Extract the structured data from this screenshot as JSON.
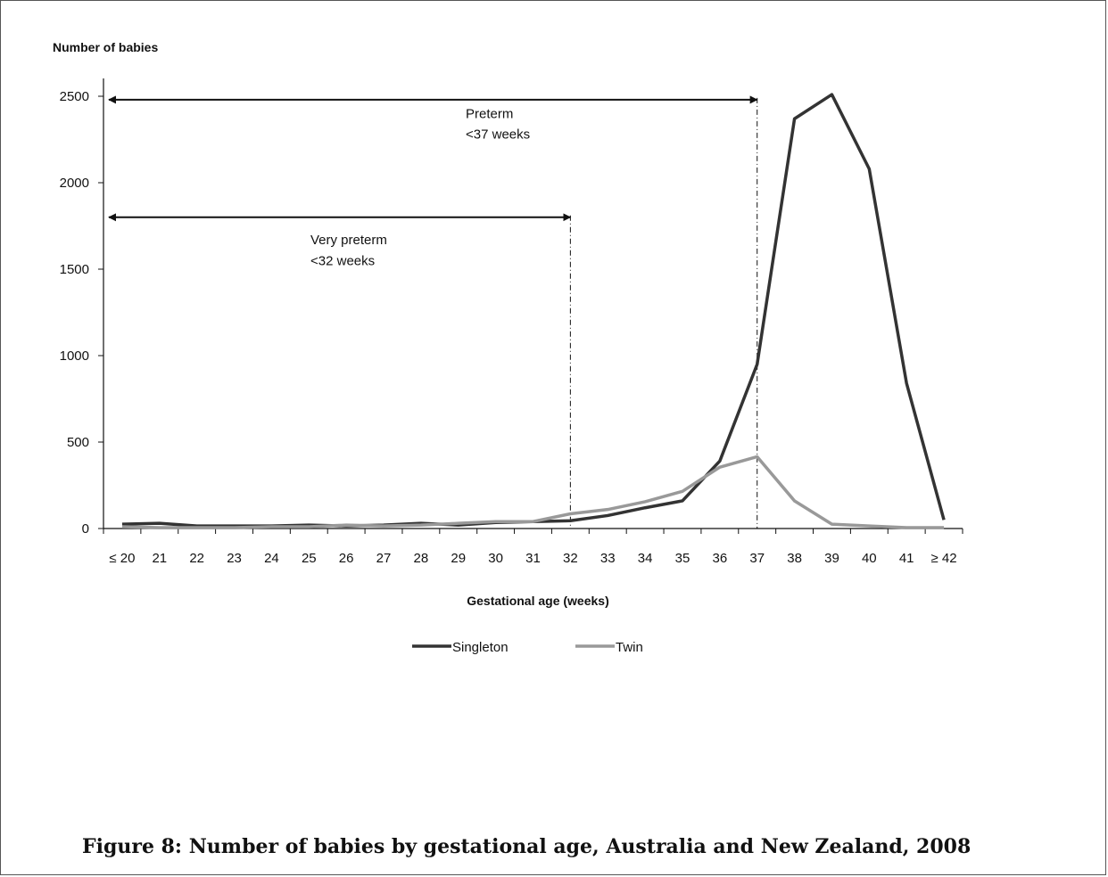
{
  "figure_caption": "Figure 8: Number of babies by gestational age, Australia and New Zealand, 2008",
  "chart_data": {
    "type": "line",
    "title": "",
    "ylabel": "Number of babies",
    "xlabel": "Gestational age (weeks)",
    "ylim": [
      0,
      2500
    ],
    "yticks": [
      "0",
      "500",
      "1000",
      "1500",
      "2000",
      "2500"
    ],
    "categories": [
      "≤ 20",
      "21",
      "22",
      "23",
      "24",
      "25",
      "26",
      "27",
      "28",
      "29",
      "30",
      "31",
      "32",
      "33",
      "34",
      "35",
      "36",
      "37",
      "38",
      "39",
      "40",
      "41",
      "≥ 42"
    ],
    "series": [
      {
        "name": "Singleton",
        "color": "#333333",
        "values": [
          25,
          30,
          15,
          15,
          15,
          20,
          15,
          20,
          30,
          20,
          35,
          40,
          45,
          75,
          120,
          160,
          390,
          950,
          2370,
          2510,
          2080,
          840,
          50
        ]
      },
      {
        "name": "Twin",
        "color": "#999999",
        "values": [
          10,
          5,
          5,
          5,
          10,
          10,
          20,
          15,
          20,
          30,
          40,
          40,
          85,
          110,
          155,
          215,
          355,
          415,
          160,
          25,
          15,
          5,
          5
        ]
      }
    ],
    "legend_position": "bottom-center",
    "grid": false,
    "annotations": [
      {
        "lines": [
          "Preterm",
          "<37 weeks"
        ],
        "span_from": "≤ 20",
        "span_to": "37",
        "y_level": 2480,
        "text_at": [
          2400,
          2280
        ]
      },
      {
        "lines": [
          "Very preterm",
          "<32 weeks"
        ],
        "span_from": "≤ 20",
        "span_to": "32",
        "y_level": 1800,
        "text_at": [
          1670,
          1550
        ]
      }
    ]
  }
}
